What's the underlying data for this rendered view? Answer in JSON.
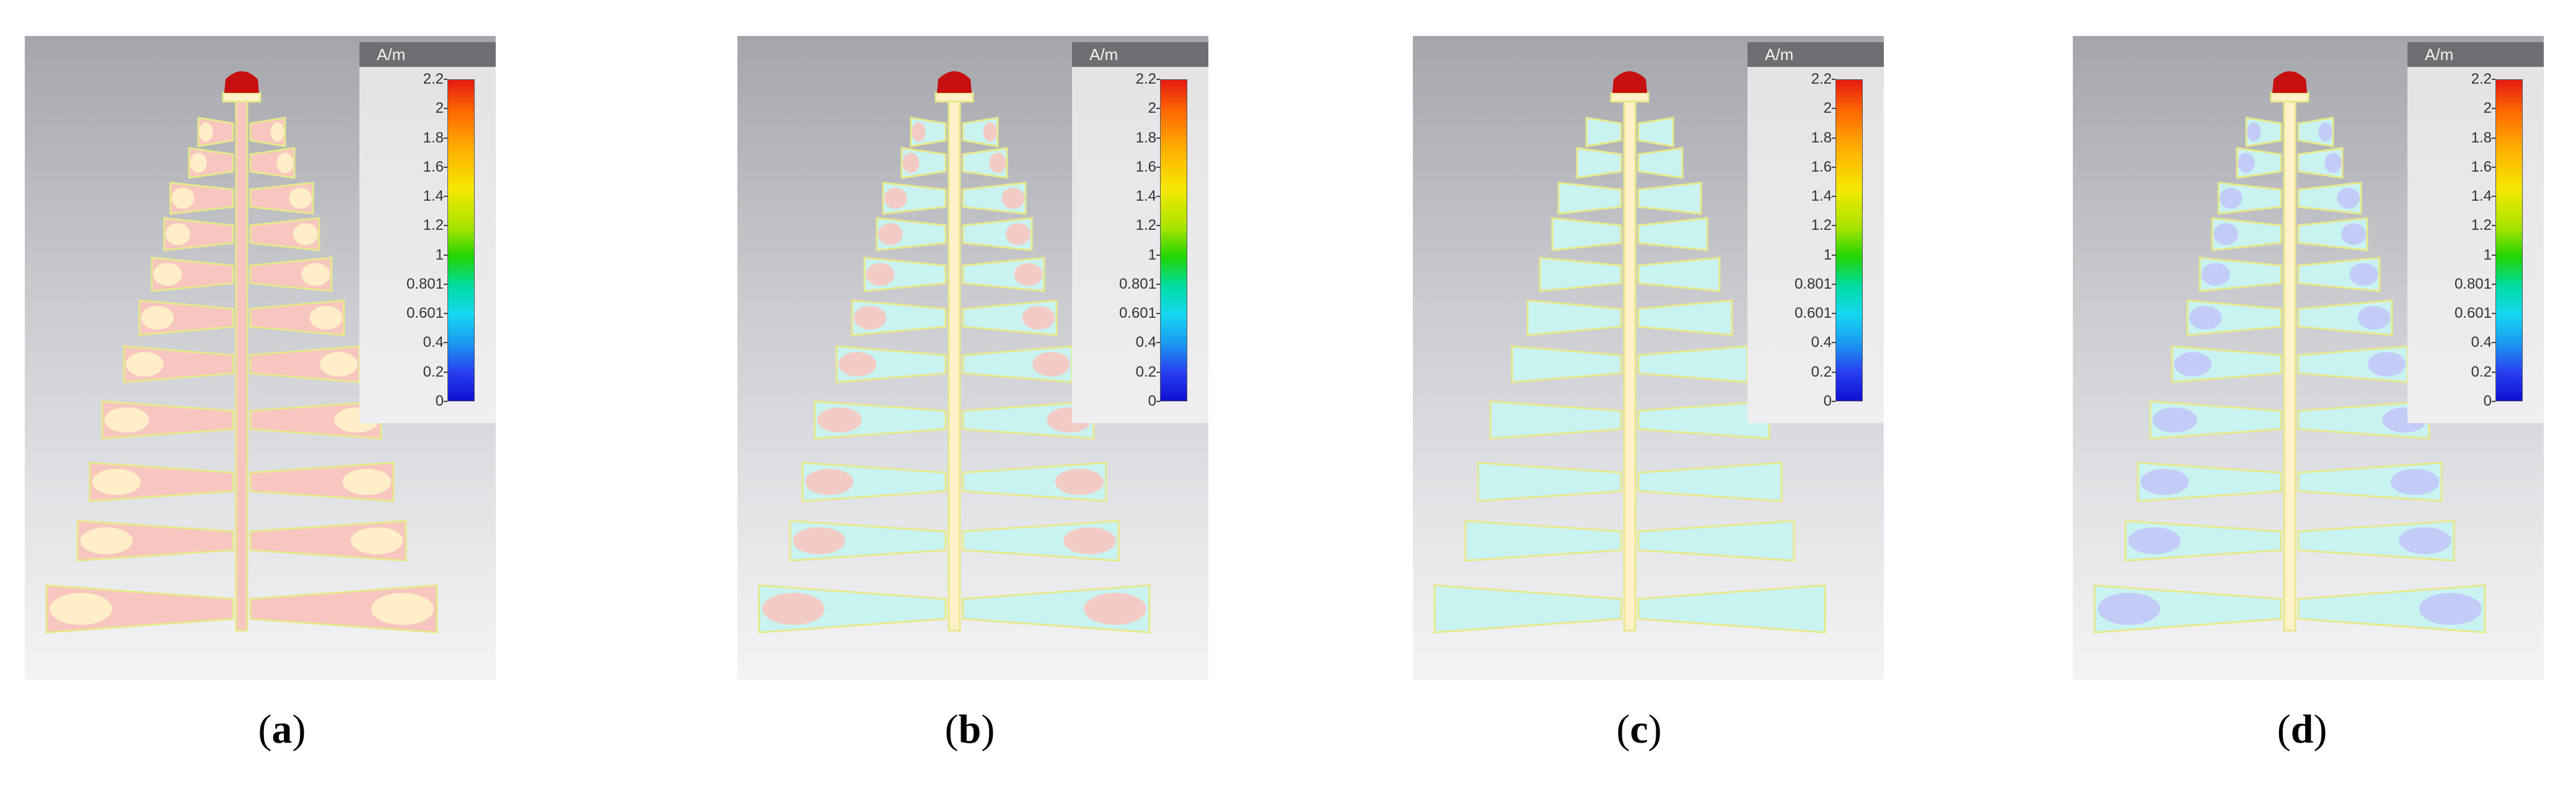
{
  "legend": {
    "unit": "A/m",
    "ticks": [
      "2.2",
      "2",
      "1.8",
      "1.6",
      "1.4",
      "1.2",
      "1",
      "0.801",
      "0.601",
      "0.4",
      "0.2",
      "0"
    ],
    "max": 2.2,
    "min": 0
  },
  "panels": [
    {
      "id": "a",
      "caption_open": "(",
      "label": "a",
      "caption_close": ")",
      "level": "high"
    },
    {
      "id": "b",
      "caption_open": "(",
      "label": "b",
      "caption_close": ")",
      "level": "medium"
    },
    {
      "id": "c",
      "caption_open": "(",
      "label": "c",
      "caption_close": ")",
      "level": "low"
    },
    {
      "id": "d",
      "caption_open": "(",
      "label": "d",
      "caption_close": ")",
      "level": "lowest"
    }
  ],
  "colors": {
    "strong": "#f7c6c0",
    "warm": "#fff2c8",
    "mid": "#c9f3f1",
    "weak": "#c2c8f7",
    "outline": "#e7e88a",
    "feed": "#c60f0f"
  }
}
